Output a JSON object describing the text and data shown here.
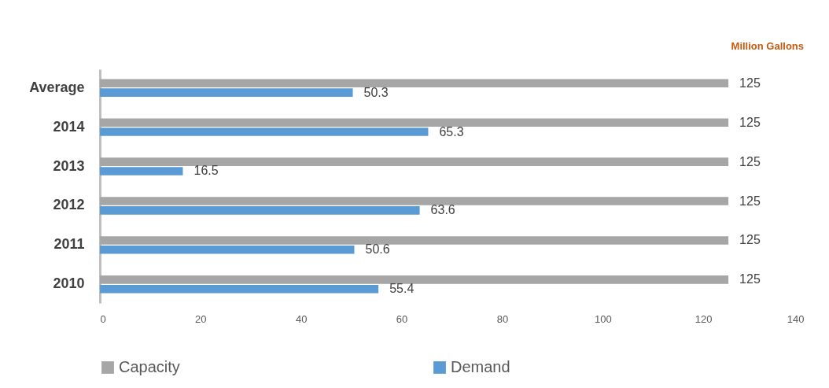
{
  "chart_data": {
    "type": "bar",
    "orientation": "horizontal",
    "categories": [
      "Average",
      "2014",
      "2013",
      "2012",
      "2011",
      "2010"
    ],
    "series": [
      {
        "name": "Capacity",
        "color": "#a6a6a6",
        "values": [
          125,
          125,
          125,
          125,
          125,
          125
        ]
      },
      {
        "name": "Demand",
        "color": "#5b9bd5",
        "values": [
          50.3,
          65.3,
          16.5,
          63.6,
          50.6,
          55.4
        ]
      }
    ],
    "xlim": [
      0,
      140
    ],
    "xticks": [
      0,
      20,
      40,
      60,
      80,
      100,
      120,
      140
    ],
    "data_labels": true,
    "legend": "bottom",
    "grid": false,
    "annotations": [
      "Million Gallons"
    ]
  }
}
